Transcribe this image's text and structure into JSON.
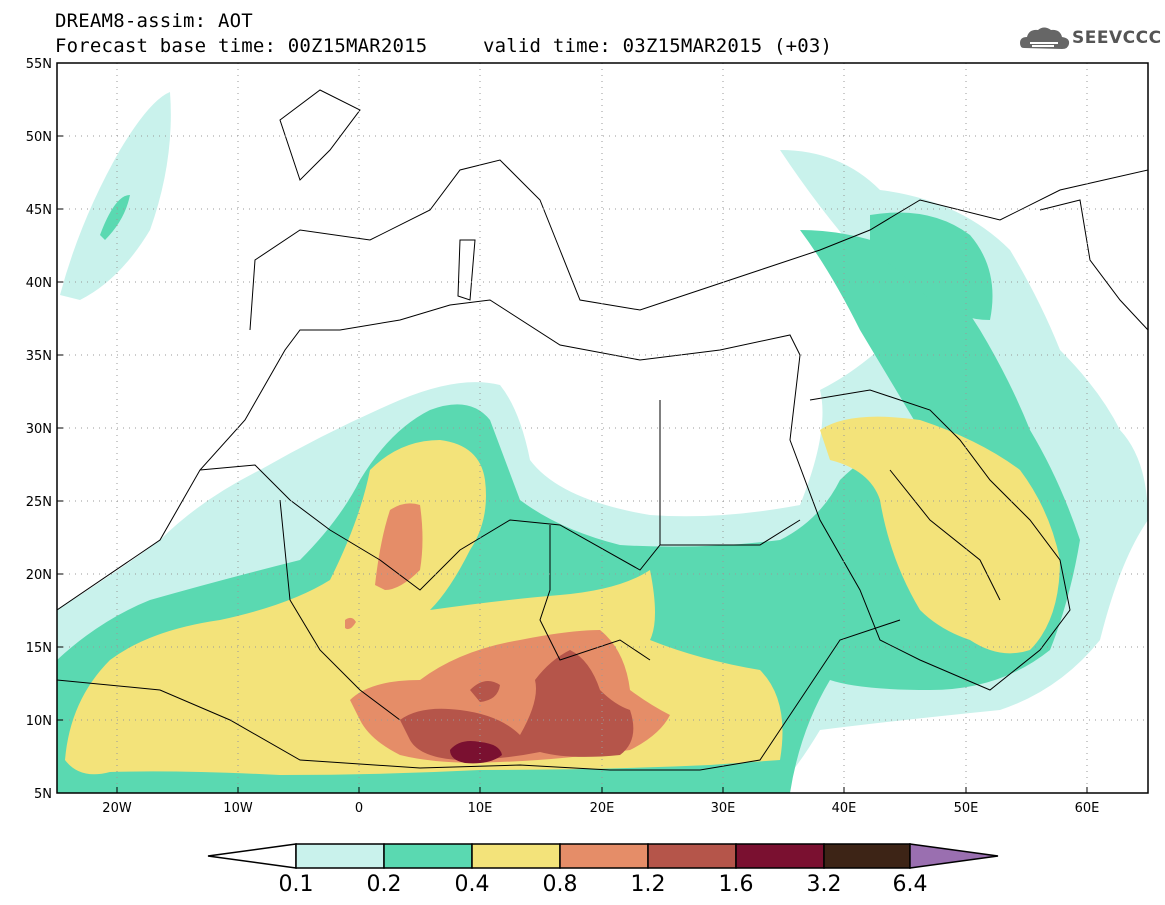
{
  "header": {
    "title": "DREAM8-assim: AOT",
    "base_time": "Forecast base time: 00Z15MAR2015",
    "valid_time": "valid time: 03Z15MAR2015 (+03)"
  },
  "logo": {
    "text": "SEEVCCC",
    "icon": "cloud-icon"
  },
  "map": {
    "lat_labels": [
      "55N",
      "50N",
      "45N",
      "40N",
      "35N",
      "30N",
      "25N",
      "20N",
      "15N",
      "10N",
      "5N"
    ],
    "lon_labels": [
      "20W",
      "10W",
      "0",
      "10E",
      "20E",
      "30E",
      "40E",
      "50E",
      "60E"
    ]
  },
  "colorbar": {
    "labels": [
      "0.1",
      "0.2",
      "0.4",
      "0.8",
      "1.2",
      "1.6",
      "3.2",
      "6.4"
    ],
    "colors": [
      "#c9f2ec",
      "#5ad9b1",
      "#f3e37a",
      "#e58d68",
      "#b5554a",
      "#7a1030",
      "#3d2416",
      "#9a6fb0"
    ]
  },
  "field_colors": {
    "c1": "#c9f2ec",
    "c2": "#5ad9b1",
    "c3": "#f3e37a",
    "c4": "#e58d68",
    "c5": "#b5554a",
    "c6": "#7a1030"
  }
}
